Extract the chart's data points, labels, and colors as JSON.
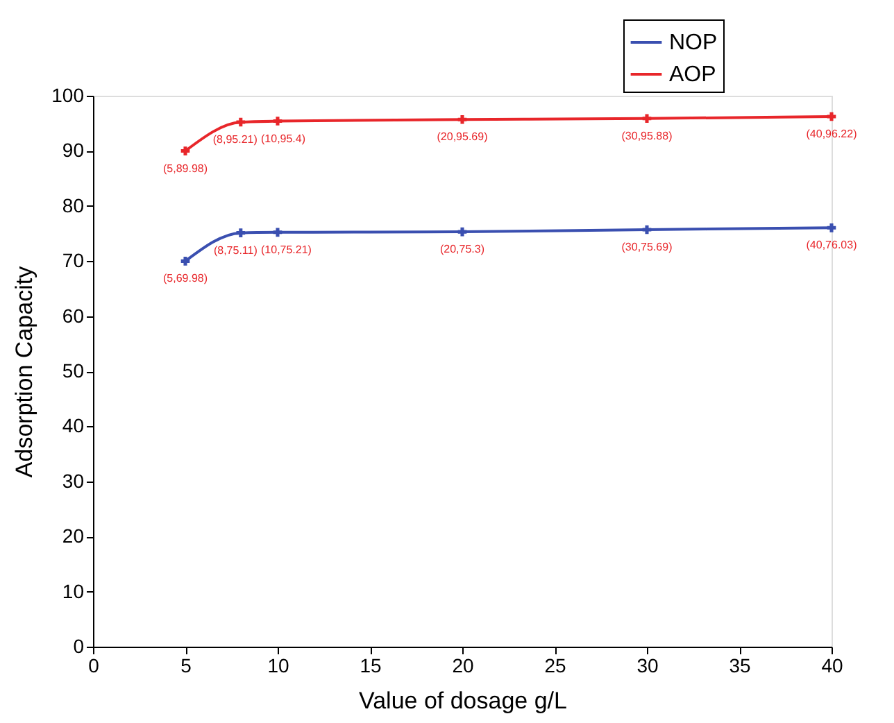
{
  "chart_data": {
    "type": "line",
    "xlabel": "Value of dosage g/L",
    "ylabel": "Adsorption Capacity",
    "x": [
      5,
      8,
      10,
      20,
      30,
      40
    ],
    "series": [
      {
        "name": "NOP",
        "color": "#3a4fb0",
        "values": [
          69.98,
          75.11,
          75.21,
          75.3,
          75.69,
          76.03
        ]
      },
      {
        "name": "AOP",
        "color": "#e8262a",
        "values": [
          89.98,
          95.21,
          95.4,
          95.69,
          95.88,
          96.22
        ]
      }
    ],
    "xlim": [
      0,
      40
    ],
    "xticks": [
      0,
      5,
      10,
      15,
      20,
      25,
      30,
      35,
      40
    ],
    "ylim": [
      0,
      100
    ],
    "yticks": [
      0,
      10,
      20,
      30,
      40,
      50,
      60,
      70,
      80,
      90,
      100
    ],
    "grid": false,
    "legend": "top right",
    "marker": "cross",
    "line_style": "solid",
    "annotations": [
      {
        "text": "(5,69.98)",
        "x": 5,
        "y": 69.98
      },
      {
        "text": "(8,75.11)",
        "x": 8,
        "y": 75.11
      },
      {
        "text": "(10,75.21)",
        "x": 10,
        "y": 75.21
      },
      {
        "text": "(20,75.3)",
        "x": 20,
        "y": 75.3
      },
      {
        "text": "(30,75.69)",
        "x": 30,
        "y": 75.69
      },
      {
        "text": "(40,76.03)",
        "x": 40,
        "y": 76.03
      },
      {
        "text": "(5,89.98)",
        "x": 5,
        "y": 89.98
      },
      {
        "text": "(8,95.21)",
        "x": 8,
        "y": 95.21
      },
      {
        "text": "(10,95.4)",
        "x": 10,
        "y": 95.4
      },
      {
        "text": "(20,95.69)",
        "x": 20,
        "y": 95.69
      },
      {
        "text": "(30,95.88)",
        "x": 30,
        "y": 95.88
      },
      {
        "text": "(40,96.22)",
        "x": 40,
        "y": 96.22
      }
    ]
  }
}
